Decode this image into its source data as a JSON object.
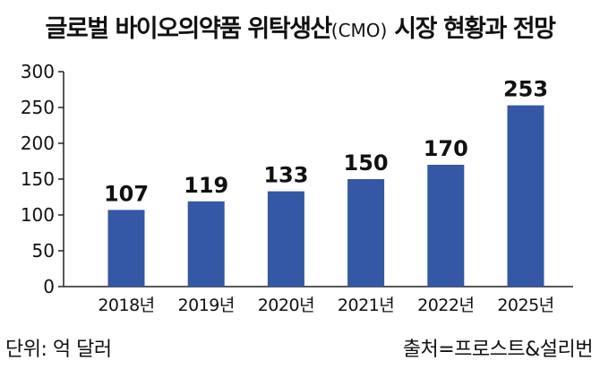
{
  "title": {
    "main_prefix": "글로벌 바이오의약품 위탁생산",
    "abbrev": "(CMO)",
    "main_suffix": " 시장 현황과 전망"
  },
  "footer": {
    "unit": "단위: 억 달러",
    "source": "출처=프로스트&설리번"
  },
  "colors": {
    "bar": "#3457a6",
    "axis": "#222222"
  },
  "chart_data": {
    "type": "bar",
    "title": "글로벌 바이오의약품 위탁생산(CMO) 시장 현황과 전망",
    "xlabel": "",
    "ylabel": "",
    "categories": [
      "2018년",
      "2019년",
      "2020년",
      "2021년",
      "2022년",
      "2025년"
    ],
    "values": [
      107,
      119,
      133,
      150,
      170,
      253
    ],
    "ylim": [
      0,
      300
    ],
    "yticks": [
      0,
      50,
      100,
      150,
      200,
      250,
      300
    ],
    "grid": false,
    "legend": "none"
  }
}
